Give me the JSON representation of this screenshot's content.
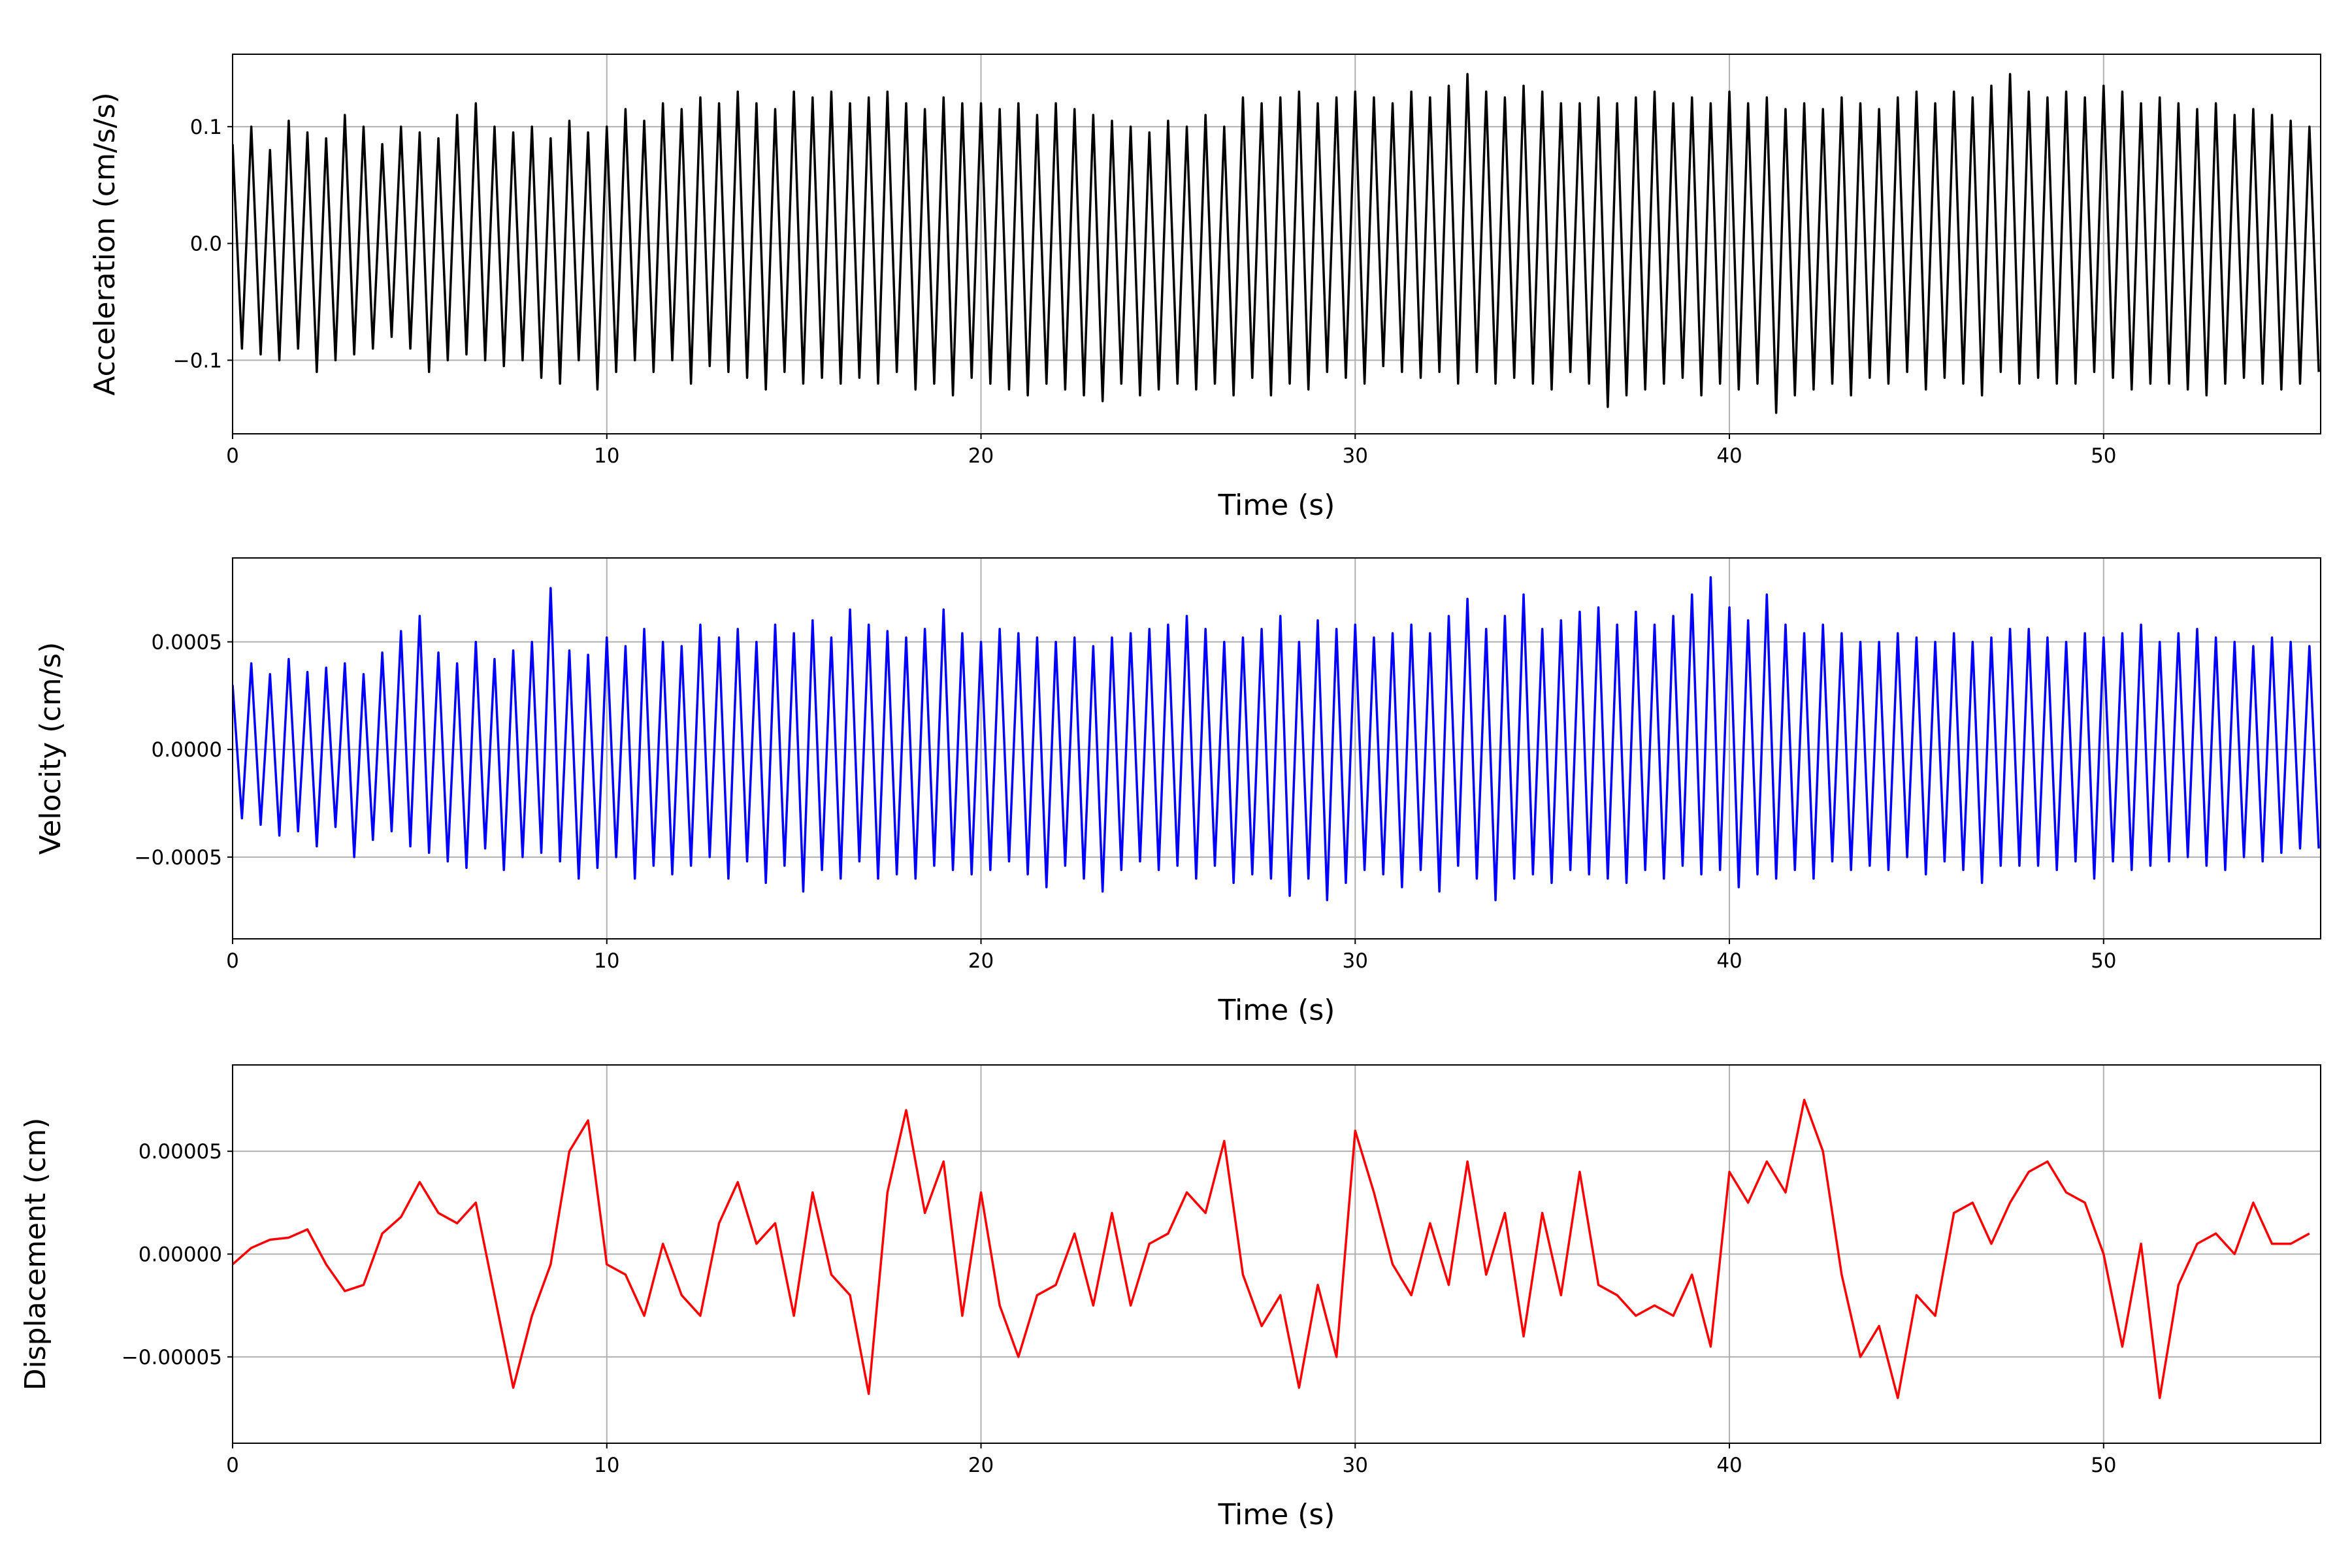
{
  "chart_data": [
    {
      "type": "line",
      "xlabel": "Time (s)",
      "ylabel": "Acceleration (cm/s/s)",
      "color": "#000000",
      "grid": true,
      "xlim": [
        0,
        55.8
      ],
      "xticks": [
        0,
        10,
        20,
        30,
        40,
        50
      ],
      "ylim": [
        -0.163,
        0.162
      ],
      "yticks": [
        {
          "value": -0.1,
          "label": "−0.1"
        },
        {
          "value": 0,
          "label": "0.0"
        },
        0.1
      ],
      "x": [
        0,
        0.25,
        0.5,
        0.75,
        1,
        1.25,
        1.5,
        1.75,
        2,
        2.25,
        2.5,
        2.75,
        3,
        3.25,
        3.5,
        3.75,
        4,
        4.25,
        4.5,
        4.75,
        5,
        5.25,
        5.5,
        5.75,
        6,
        6.25,
        6.5,
        6.75,
        7,
        7.25,
        7.5,
        7.75,
        8,
        8.25,
        8.5,
        8.75,
        9,
        9.25,
        9.5,
        9.75,
        10,
        10.25,
        10.5,
        10.75,
        11,
        11.25,
        11.5,
        11.75,
        12,
        12.25,
        12.5,
        12.75,
        13,
        13.25,
        13.5,
        13.75,
        14,
        14.25,
        14.5,
        14.75,
        15,
        15.25,
        15.5,
        15.75,
        16,
        16.25,
        16.5,
        16.75,
        17,
        17.25,
        17.5,
        17.75,
        18,
        18.25,
        18.5,
        18.75,
        19,
        19.25,
        19.5,
        19.75,
        20,
        20.25,
        20.5,
        20.75,
        21,
        21.25,
        21.5,
        21.75,
        22,
        22.25,
        22.5,
        22.75,
        23,
        23.25,
        23.5,
        23.75,
        24,
        24.25,
        24.5,
        24.75,
        25,
        25.25,
        25.5,
        25.75,
        26,
        26.25,
        26.5,
        26.75,
        27,
        27.25,
        27.5,
        27.75,
        28,
        28.25,
        28.5,
        28.75,
        29,
        29.25,
        29.5,
        29.75,
        30,
        30.25,
        30.5,
        30.75,
        31,
        31.25,
        31.5,
        31.75,
        32,
        32.25,
        32.5,
        32.75,
        33,
        33.25,
        33.5,
        33.75,
        34,
        34.25,
        34.5,
        34.75,
        35,
        35.25,
        35.5,
        35.75,
        36,
        36.25,
        36.5,
        36.75,
        37,
        37.25,
        37.5,
        37.75,
        38,
        38.25,
        38.5,
        38.75,
        39,
        39.25,
        39.5,
        39.75,
        40,
        40.25,
        40.5,
        40.75,
        41,
        41.25,
        41.5,
        41.75,
        42,
        42.25,
        42.5,
        42.75,
        43,
        43.25,
        43.5,
        43.75,
        44,
        44.25,
        44.5,
        44.75,
        45,
        45.25,
        45.5,
        45.75,
        46,
        46.25,
        46.5,
        46.75,
        47,
        47.25,
        47.5,
        47.75,
        48,
        48.25,
        48.5,
        48.75,
        49,
        49.25,
        49.5,
        49.75,
        50,
        50.25,
        50.5,
        50.75,
        51,
        51.25,
        51.5,
        51.75,
        52,
        52.25,
        52.5,
        52.75,
        53,
        53.25,
        53.5,
        53.75,
        54,
        54.25,
        54.5,
        54.75,
        55,
        55.25,
        55.5,
        55.75
      ],
      "values": [
        0.085,
        -0.09,
        0.1,
        -0.095,
        0.08,
        -0.1,
        0.105,
        -0.09,
        0.095,
        -0.11,
        0.09,
        -0.1,
        0.11,
        -0.095,
        0.1,
        -0.09,
        0.085,
        -0.08,
        0.1,
        -0.09,
        0.095,
        -0.11,
        0.09,
        -0.1,
        0.11,
        -0.095,
        0.12,
        -0.1,
        0.1,
        -0.105,
        0.095,
        -0.1,
        0.1,
        -0.115,
        0.09,
        -0.12,
        0.105,
        -0.1,
        0.095,
        -0.125,
        0.1,
        -0.11,
        0.115,
        -0.1,
        0.105,
        -0.11,
        0.12,
        -0.1,
        0.115,
        -0.12,
        0.125,
        -0.105,
        0.12,
        -0.11,
        0.13,
        -0.115,
        0.12,
        -0.125,
        0.115,
        -0.11,
        0.13,
        -0.12,
        0.125,
        -0.115,
        0.13,
        -0.12,
        0.12,
        -0.115,
        0.125,
        -0.12,
        0.13,
        -0.11,
        0.12,
        -0.125,
        0.115,
        -0.12,
        0.125,
        -0.13,
        0.12,
        -0.115,
        0.12,
        -0.12,
        0.115,
        -0.125,
        0.12,
        -0.13,
        0.11,
        -0.12,
        0.12,
        -0.125,
        0.115,
        -0.13,
        0.11,
        -0.135,
        0.105,
        -0.12,
        0.1,
        -0.13,
        0.095,
        -0.125,
        0.105,
        -0.12,
        0.1,
        -0.125,
        0.11,
        -0.12,
        0.1,
        -0.13,
        0.125,
        -0.115,
        0.12,
        -0.13,
        0.125,
        -0.12,
        0.13,
        -0.125,
        0.12,
        -0.11,
        0.125,
        -0.115,
        0.13,
        -0.12,
        0.125,
        -0.105,
        0.12,
        -0.11,
        0.13,
        -0.115,
        0.125,
        -0.11,
        0.135,
        -0.12,
        0.145,
        -0.11,
        0.13,
        -0.12,
        0.125,
        -0.115,
        0.135,
        -0.12,
        0.13,
        -0.125,
        0.12,
        -0.11,
        0.12,
        -0.12,
        0.125,
        -0.14,
        0.12,
        -0.13,
        0.125,
        -0.125,
        0.13,
        -0.12,
        0.12,
        -0.115,
        0.125,
        -0.13,
        0.12,
        -0.12,
        0.13,
        -0.125,
        0.12,
        -0.12,
        0.125,
        -0.145,
        0.115,
        -0.13,
        0.12,
        -0.125,
        0.115,
        -0.12,
        0.125,
        -0.13,
        0.12,
        -0.115,
        0.115,
        -0.12,
        0.125,
        -0.11,
        0.13,
        -0.125,
        0.12,
        -0.115,
        0.13,
        -0.12,
        0.125,
        -0.13,
        0.135,
        -0.11,
        0.145,
        -0.12,
        0.13,
        -0.115,
        0.125,
        -0.12,
        0.13,
        -0.12,
        0.125,
        -0.11,
        0.135,
        -0.115,
        0.13,
        -0.125,
        0.12,
        -0.12,
        0.125,
        -0.12,
        0.12,
        -0.125,
        0.115,
        -0.13,
        0.12,
        -0.12,
        0.11,
        -0.115,
        0.115,
        -0.12,
        0.11,
        -0.125,
        0.105,
        -0.12,
        0.1,
        -0.11
      ]
    },
    {
      "type": "line",
      "xlabel": "Time (s)",
      "ylabel": "Velocity (cm/s)",
      "color": "#0000ff",
      "grid": true,
      "xlim": [
        0,
        55.8
      ],
      "xticks": [
        0,
        10,
        20,
        30,
        40,
        50
      ],
      "ylim": [
        -0.00088,
        0.00089
      ],
      "yticks": [
        {
          "value": -0.0005,
          "label": "−0.0005"
        },
        {
          "value": 0,
          "label": "0.0000"
        },
        0.0005
      ],
      "x": [
        0,
        0.25,
        0.5,
        0.75,
        1,
        1.25,
        1.5,
        1.75,
        2,
        2.25,
        2.5,
        2.75,
        3,
        3.25,
        3.5,
        3.75,
        4,
        4.25,
        4.5,
        4.75,
        5,
        5.25,
        5.5,
        5.75,
        6,
        6.25,
        6.5,
        6.75,
        7,
        7.25,
        7.5,
        7.75,
        8,
        8.25,
        8.5,
        8.75,
        9,
        9.25,
        9.5,
        9.75,
        10,
        10.25,
        10.5,
        10.75,
        11,
        11.25,
        11.5,
        11.75,
        12,
        12.25,
        12.5,
        12.75,
        13,
        13.25,
        13.5,
        13.75,
        14,
        14.25,
        14.5,
        14.75,
        15,
        15.25,
        15.5,
        15.75,
        16,
        16.25,
        16.5,
        16.75,
        17,
        17.25,
        17.5,
        17.75,
        18,
        18.25,
        18.5,
        18.75,
        19,
        19.25,
        19.5,
        19.75,
        20,
        20.25,
        20.5,
        20.75,
        21,
        21.25,
        21.5,
        21.75,
        22,
        22.25,
        22.5,
        22.75,
        23,
        23.25,
        23.5,
        23.75,
        24,
        24.25,
        24.5,
        24.75,
        25,
        25.25,
        25.5,
        25.75,
        26,
        26.25,
        26.5,
        26.75,
        27,
        27.25,
        27.5,
        27.75,
        28,
        28.25,
        28.5,
        28.75,
        29,
        29.25,
        29.5,
        29.75,
        30,
        30.25,
        30.5,
        30.75,
        31,
        31.25,
        31.5,
        31.75,
        32,
        32.25,
        32.5,
        32.75,
        33,
        33.25,
        33.5,
        33.75,
        34,
        34.25,
        34.5,
        34.75,
        35,
        35.25,
        35.5,
        35.75,
        36,
        36.25,
        36.5,
        36.75,
        37,
        37.25,
        37.5,
        37.75,
        38,
        38.25,
        38.5,
        38.75,
        39,
        39.25,
        39.5,
        39.75,
        40,
        40.25,
        40.5,
        40.75,
        41,
        41.25,
        41.5,
        41.75,
        42,
        42.25,
        42.5,
        42.75,
        43,
        43.25,
        43.5,
        43.75,
        44,
        44.25,
        44.5,
        44.75,
        45,
        45.25,
        45.5,
        45.75,
        46,
        46.25,
        46.5,
        46.75,
        47,
        47.25,
        47.5,
        47.75,
        48,
        48.25,
        48.5,
        48.75,
        49,
        49.25,
        49.5,
        49.75,
        50,
        50.25,
        50.5,
        50.75,
        51,
        51.25,
        51.5,
        51.75,
        52,
        52.25,
        52.5,
        52.75,
        53,
        53.25,
        53.5,
        53.75,
        54,
        54.25,
        54.5,
        54.75,
        55,
        55.25,
        55.5,
        55.75
      ],
      "values": [
        0.0003,
        -0.00032,
        0.0004,
        -0.00035,
        0.00035,
        -0.0004,
        0.00042,
        -0.00038,
        0.00036,
        -0.00045,
        0.00038,
        -0.00036,
        0.0004,
        -0.0005,
        0.00035,
        -0.00042,
        0.00045,
        -0.00038,
        0.00055,
        -0.00045,
        0.00062,
        -0.00048,
        0.00045,
        -0.00052,
        0.0004,
        -0.00055,
        0.0005,
        -0.00046,
        0.00042,
        -0.00056,
        0.00046,
        -0.0005,
        0.0005,
        -0.00048,
        0.00075,
        -0.00052,
        0.00046,
        -0.0006,
        0.00044,
        -0.00055,
        0.00052,
        -0.0005,
        0.00048,
        -0.0006,
        0.00056,
        -0.00054,
        0.0005,
        -0.00058,
        0.00048,
        -0.00054,
        0.00058,
        -0.0005,
        0.00052,
        -0.0006,
        0.00056,
        -0.00052,
        0.0005,
        -0.00062,
        0.00058,
        -0.00054,
        0.00054,
        -0.00066,
        0.0006,
        -0.00056,
        0.00052,
        -0.0006,
        0.00065,
        -0.00052,
        0.00058,
        -0.0006,
        0.00055,
        -0.00058,
        0.00052,
        -0.0006,
        0.00056,
        -0.00054,
        0.00065,
        -0.00056,
        0.00054,
        -0.00058,
        0.0005,
        -0.00056,
        0.00056,
        -0.00052,
        0.00054,
        -0.00058,
        0.00052,
        -0.00064,
        0.0005,
        -0.00054,
        0.00052,
        -0.0006,
        0.00048,
        -0.00066,
        0.00052,
        -0.00056,
        0.00054,
        -0.00052,
        0.00056,
        -0.00056,
        0.00058,
        -0.00054,
        0.00062,
        -0.0006,
        0.00056,
        -0.00054,
        0.0005,
        -0.00062,
        0.00052,
        -0.00058,
        0.00056,
        -0.0006,
        0.00062,
        -0.00068,
        0.0005,
        -0.0006,
        0.0006,
        -0.0007,
        0.00056,
        -0.00062,
        0.00058,
        -0.00056,
        0.00052,
        -0.00058,
        0.00054,
        -0.00064,
        0.00058,
        -0.00056,
        0.00054,
        -0.00066,
        0.00062,
        -0.00054,
        0.0007,
        -0.0006,
        0.00056,
        -0.0007,
        0.00062,
        -0.0006,
        0.00072,
        -0.00058,
        0.00056,
        -0.00062,
        0.0006,
        -0.00056,
        0.00064,
        -0.00058,
        0.00066,
        -0.0006,
        0.00058,
        -0.00062,
        0.00064,
        -0.00056,
        0.00058,
        -0.0006,
        0.00062,
        -0.00054,
        0.00072,
        -0.00058,
        0.0008,
        -0.00056,
        0.00066,
        -0.00064,
        0.0006,
        -0.00058,
        0.00072,
        -0.0006,
        0.00058,
        -0.00056,
        0.00054,
        -0.0006,
        0.00058,
        -0.00052,
        0.00054,
        -0.00056,
        0.0005,
        -0.00054,
        0.0005,
        -0.00056,
        0.00054,
        -0.0005,
        0.00052,
        -0.00058,
        0.0005,
        -0.00052,
        0.00054,
        -0.00056,
        0.0005,
        -0.00062,
        0.00052,
        -0.00054,
        0.00056,
        -0.00054,
        0.00056,
        -0.00054,
        0.00052,
        -0.00056,
        0.0005,
        -0.00052,
        0.00054,
        -0.0006,
        0.00052,
        -0.00052,
        0.00054,
        -0.00056,
        0.00058,
        -0.00054,
        0.0005,
        -0.00052,
        0.00054,
        -0.0005,
        0.00056,
        -0.00054,
        0.00052,
        -0.00056,
        0.0005,
        -0.0005,
        0.00048,
        -0.00052,
        0.00052,
        -0.00048,
        0.0005,
        -0.00046,
        0.00048,
        -0.00046
      ]
    },
    {
      "type": "line",
      "xlabel": "Time (s)",
      "ylabel": "Displacement (cm)",
      "color": "#ff0000",
      "grid": true,
      "xlim": [
        0,
        55.8
      ],
      "xticks": [
        0,
        10,
        20,
        30,
        40,
        50
      ],
      "ylim": [
        -9.2e-05,
        9.2e-05
      ],
      "yticks": [
        {
          "value": -5e-05,
          "label": "−0.00005"
        },
        {
          "value": 0,
          "label": "0.00000"
        },
        5e-05
      ],
      "x": [
        0,
        0.5,
        1,
        1.5,
        2,
        2.5,
        3,
        3.5,
        4,
        4.5,
        5,
        5.5,
        6,
        6.5,
        7,
        7.5,
        8,
        8.5,
        9,
        9.5,
        10,
        10.5,
        11,
        11.5,
        12,
        12.5,
        13,
        13.5,
        14,
        14.5,
        15,
        15.5,
        16,
        16.5,
        17,
        17.5,
        18,
        18.5,
        19,
        19.5,
        20,
        20.5,
        21,
        21.5,
        22,
        22.5,
        23,
        23.5,
        24,
        24.5,
        25,
        25.5,
        26,
        26.5,
        27,
        27.5,
        28,
        28.5,
        29,
        29.5,
        30,
        30.5,
        31,
        31.5,
        32,
        32.5,
        33,
        33.5,
        34,
        34.5,
        35,
        35.5,
        36,
        36.5,
        37,
        37.5,
        38,
        38.5,
        39,
        39.5,
        40,
        40.5,
        41,
        41.5,
        42,
        42.5,
        43,
        43.5,
        44,
        44.5,
        45,
        45.5,
        46,
        46.5,
        47,
        47.5,
        48,
        48.5,
        49,
        49.5,
        50,
        50.5,
        51,
        51.5,
        52,
        52.5,
        53,
        53.5,
        54,
        54.5,
        55,
        55.5
      ],
      "values": [
        -5e-06,
        3e-06,
        7e-06,
        8e-06,
        1.2e-05,
        -5e-06,
        -1.8e-05,
        -1.5e-05,
        1e-05,
        1.8e-05,
        3.5e-05,
        2e-05,
        1.5e-05,
        2.5e-05,
        -2e-05,
        -6.5e-05,
        -3e-05,
        -5e-06,
        5e-05,
        6.5e-05,
        -5e-06,
        -1e-05,
        -3e-05,
        5e-06,
        -2e-05,
        -3e-05,
        1.5e-05,
        3.5e-05,
        5e-06,
        1.5e-05,
        -3e-05,
        3e-05,
        -1e-05,
        -2e-05,
        -6.8e-05,
        3e-05,
        7e-05,
        2e-05,
        4.5e-05,
        -3e-05,
        3e-05,
        -2.5e-05,
        -5e-05,
        -2e-05,
        -1.5e-05,
        1e-05,
        -2.5e-05,
        2e-05,
        -2.5e-05,
        5e-06,
        1e-05,
        3e-05,
        2e-05,
        5.5e-05,
        -1e-05,
        -3.5e-05,
        -2e-05,
        -6.5e-05,
        -1.5e-05,
        -5e-05,
        6e-05,
        3e-05,
        -5e-06,
        -2e-05,
        1.5e-05,
        -1.5e-05,
        4.5e-05,
        -1e-05,
        2e-05,
        -4e-05,
        2e-05,
        -2e-05,
        4e-05,
        -1.5e-05,
        -2e-05,
        -3e-05,
        -2.5e-05,
        -3e-05,
        -1e-05,
        -4.5e-05,
        4e-05,
        2.5e-05,
        4.5e-05,
        3e-05,
        7.5e-05,
        5e-05,
        -1e-05,
        -5e-05,
        -3.5e-05,
        -7e-05,
        -2e-05,
        -3e-05,
        2e-05,
        2.5e-05,
        5e-06,
        2.5e-05,
        4e-05,
        4.5e-05,
        3e-05,
        2.5e-05,
        0,
        -4.5e-05,
        5e-06,
        -7e-05,
        -1.5e-05,
        5e-06,
        1e-05,
        0,
        2.5e-05,
        5e-06,
        5e-06,
        1e-05
      ]
    }
  ]
}
